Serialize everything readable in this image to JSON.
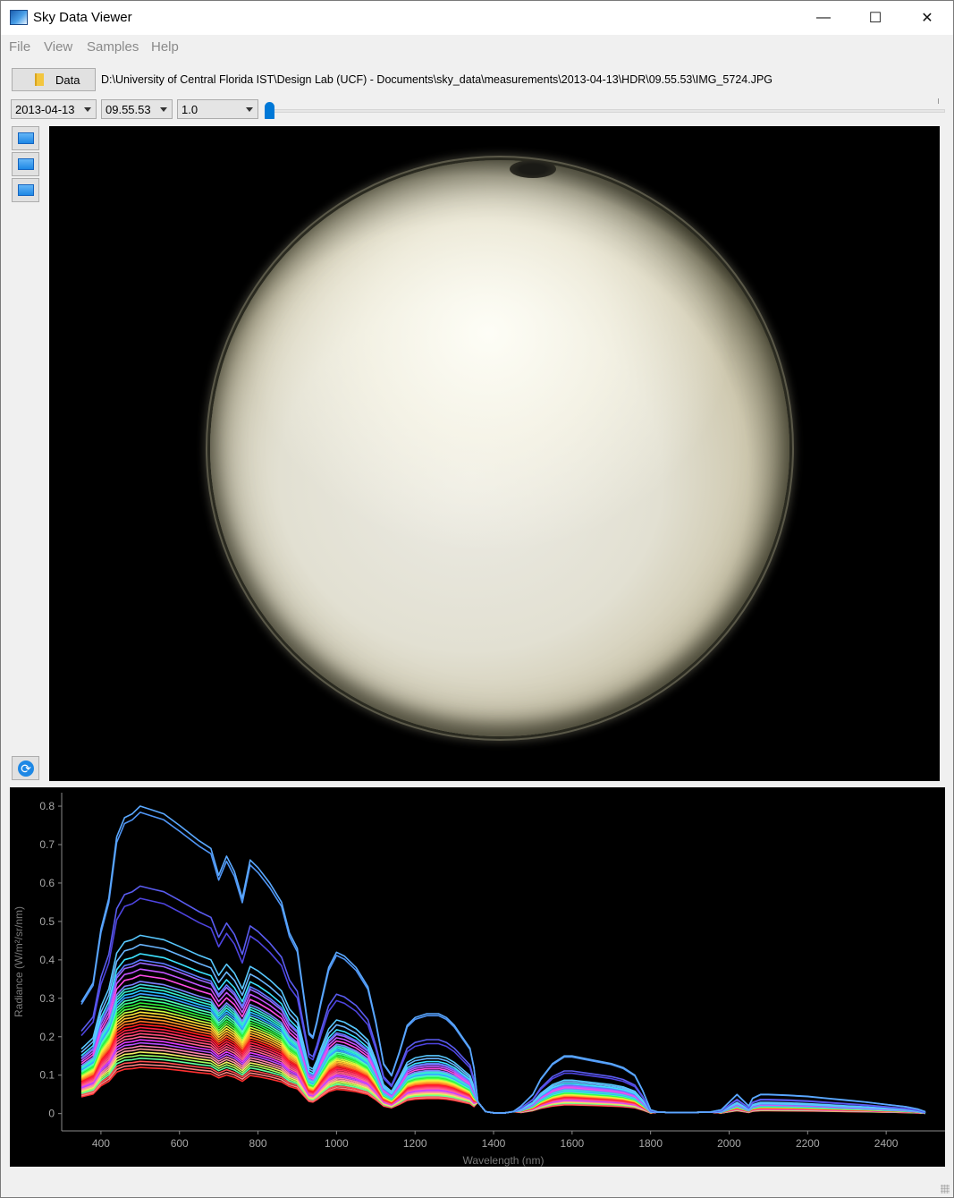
{
  "window": {
    "title": "Sky Data Viewer",
    "minimize": "—",
    "maximize": "☐",
    "close": "✕"
  },
  "menu": {
    "items": [
      "File",
      "View",
      "Samples",
      "Help"
    ]
  },
  "toolbar": {
    "data_button": "Data",
    "path": "D:\\University of Central Florida IST\\Design Lab (UCF) - Documents\\sky_data\\measurements\\2013-04-13\\HDR\\09.55.53\\IMG_5724.JPG",
    "date": "2013-04-13",
    "time": "09.55.53",
    "exposure": "1.0",
    "slider_value": 0
  },
  "side_buttons": [
    "screen-icon",
    "screen-icon",
    "screen-icon"
  ],
  "refresh_icon": "refresh-icon",
  "chart_data": {
    "type": "line",
    "xlabel": "Wavelength (nm)",
    "ylabel": "Radiance (W/m²/sr/nm)",
    "xlim": [
      300,
      2550
    ],
    "ylim": [
      -0.045,
      0.835
    ],
    "xticks": [
      400,
      600,
      800,
      1000,
      1200,
      1400,
      1600,
      1800,
      2000,
      2200,
      2400
    ],
    "yticks": [
      0,
      0.1,
      0.2,
      0.3,
      0.4,
      0.5,
      0.6,
      0.7,
      0.8
    ],
    "legend": "none",
    "background": "#000000",
    "series_count": 40,
    "base_profile": {
      "x": [
        350,
        380,
        400,
        420,
        440,
        460,
        480,
        500,
        530,
        560,
        600,
        650,
        680,
        700,
        720,
        740,
        760,
        780,
        800,
        830,
        860,
        880,
        900,
        915,
        930,
        940,
        950,
        960,
        980,
        1000,
        1020,
        1050,
        1080,
        1100,
        1120,
        1140,
        1160,
        1180,
        1200,
        1230,
        1260,
        1280,
        1300,
        1320,
        1340,
        1350,
        1360,
        1380,
        1400,
        1430,
        1450,
        1470,
        1500,
        1520,
        1550,
        1580,
        1600,
        1650,
        1700,
        1730,
        1760,
        1780,
        1800,
        1820,
        1850,
        1900,
        1950,
        1980,
        2000,
        2020,
        2040,
        2050,
        2060,
        2080,
        2100,
        2150,
        2200,
        2250,
        2300,
        2350,
        2400,
        2450,
        2480,
        2500
      ],
      "y": [
        0.29,
        0.34,
        0.48,
        0.56,
        0.72,
        0.77,
        0.78,
        0.8,
        0.79,
        0.78,
        0.75,
        0.71,
        0.69,
        0.62,
        0.67,
        0.63,
        0.56,
        0.66,
        0.64,
        0.6,
        0.55,
        0.47,
        0.43,
        0.32,
        0.21,
        0.2,
        0.24,
        0.29,
        0.38,
        0.42,
        0.41,
        0.38,
        0.33,
        0.24,
        0.13,
        0.1,
        0.16,
        0.23,
        0.25,
        0.26,
        0.26,
        0.25,
        0.23,
        0.2,
        0.17,
        0.12,
        0.03,
        0.005,
        0.002,
        0.002,
        0.005,
        0.02,
        0.05,
        0.09,
        0.13,
        0.15,
        0.15,
        0.14,
        0.13,
        0.12,
        0.1,
        0.06,
        0.01,
        0.004,
        0.003,
        0.003,
        0.004,
        0.01,
        0.03,
        0.05,
        0.03,
        0.02,
        0.04,
        0.05,
        0.05,
        0.048,
        0.045,
        0.04,
        0.035,
        0.03,
        0.024,
        0.018,
        0.012,
        0.005
      ]
    },
    "series_scales": [
      1.0,
      0.98,
      0.74,
      0.7,
      0.58,
      0.55,
      0.52,
      0.5,
      0.49,
      0.47,
      0.45,
      0.43,
      0.42,
      0.41,
      0.4,
      0.39,
      0.38,
      0.37,
      0.36,
      0.35,
      0.34,
      0.33,
      0.32,
      0.31,
      0.3,
      0.29,
      0.28,
      0.27,
      0.26,
      0.25,
      0.24,
      0.23,
      0.22,
      0.21,
      0.2,
      0.19,
      0.18,
      0.17,
      0.16,
      0.15
    ],
    "series_colors": [
      "#5aa8ff",
      "#4f95f5",
      "#5a5cf0",
      "#4e44e0",
      "#58c8ff",
      "#6ab6ff",
      "#3de2ff",
      "#5b7bff",
      "#9a66ff",
      "#c455ff",
      "#ff4ce6",
      "#7f7fff",
      "#45d6e0",
      "#36f0c8",
      "#28c8ff",
      "#3aa0ff",
      "#55ffbf",
      "#39ff8e",
      "#2cf03a",
      "#5cff4a",
      "#c8ff40",
      "#ffe83a",
      "#ffc230",
      "#ff9a2a",
      "#ff6a24",
      "#ff1e1e",
      "#ff2040",
      "#ff3360",
      "#ff4d7a",
      "#ff6690",
      "#e23aff",
      "#b84dff",
      "#ff80b0",
      "#ffa0a0",
      "#f0f060",
      "#a0ff60",
      "#60ffa0",
      "#ff5050",
      "#ff8080",
      "#ff3030"
    ]
  }
}
